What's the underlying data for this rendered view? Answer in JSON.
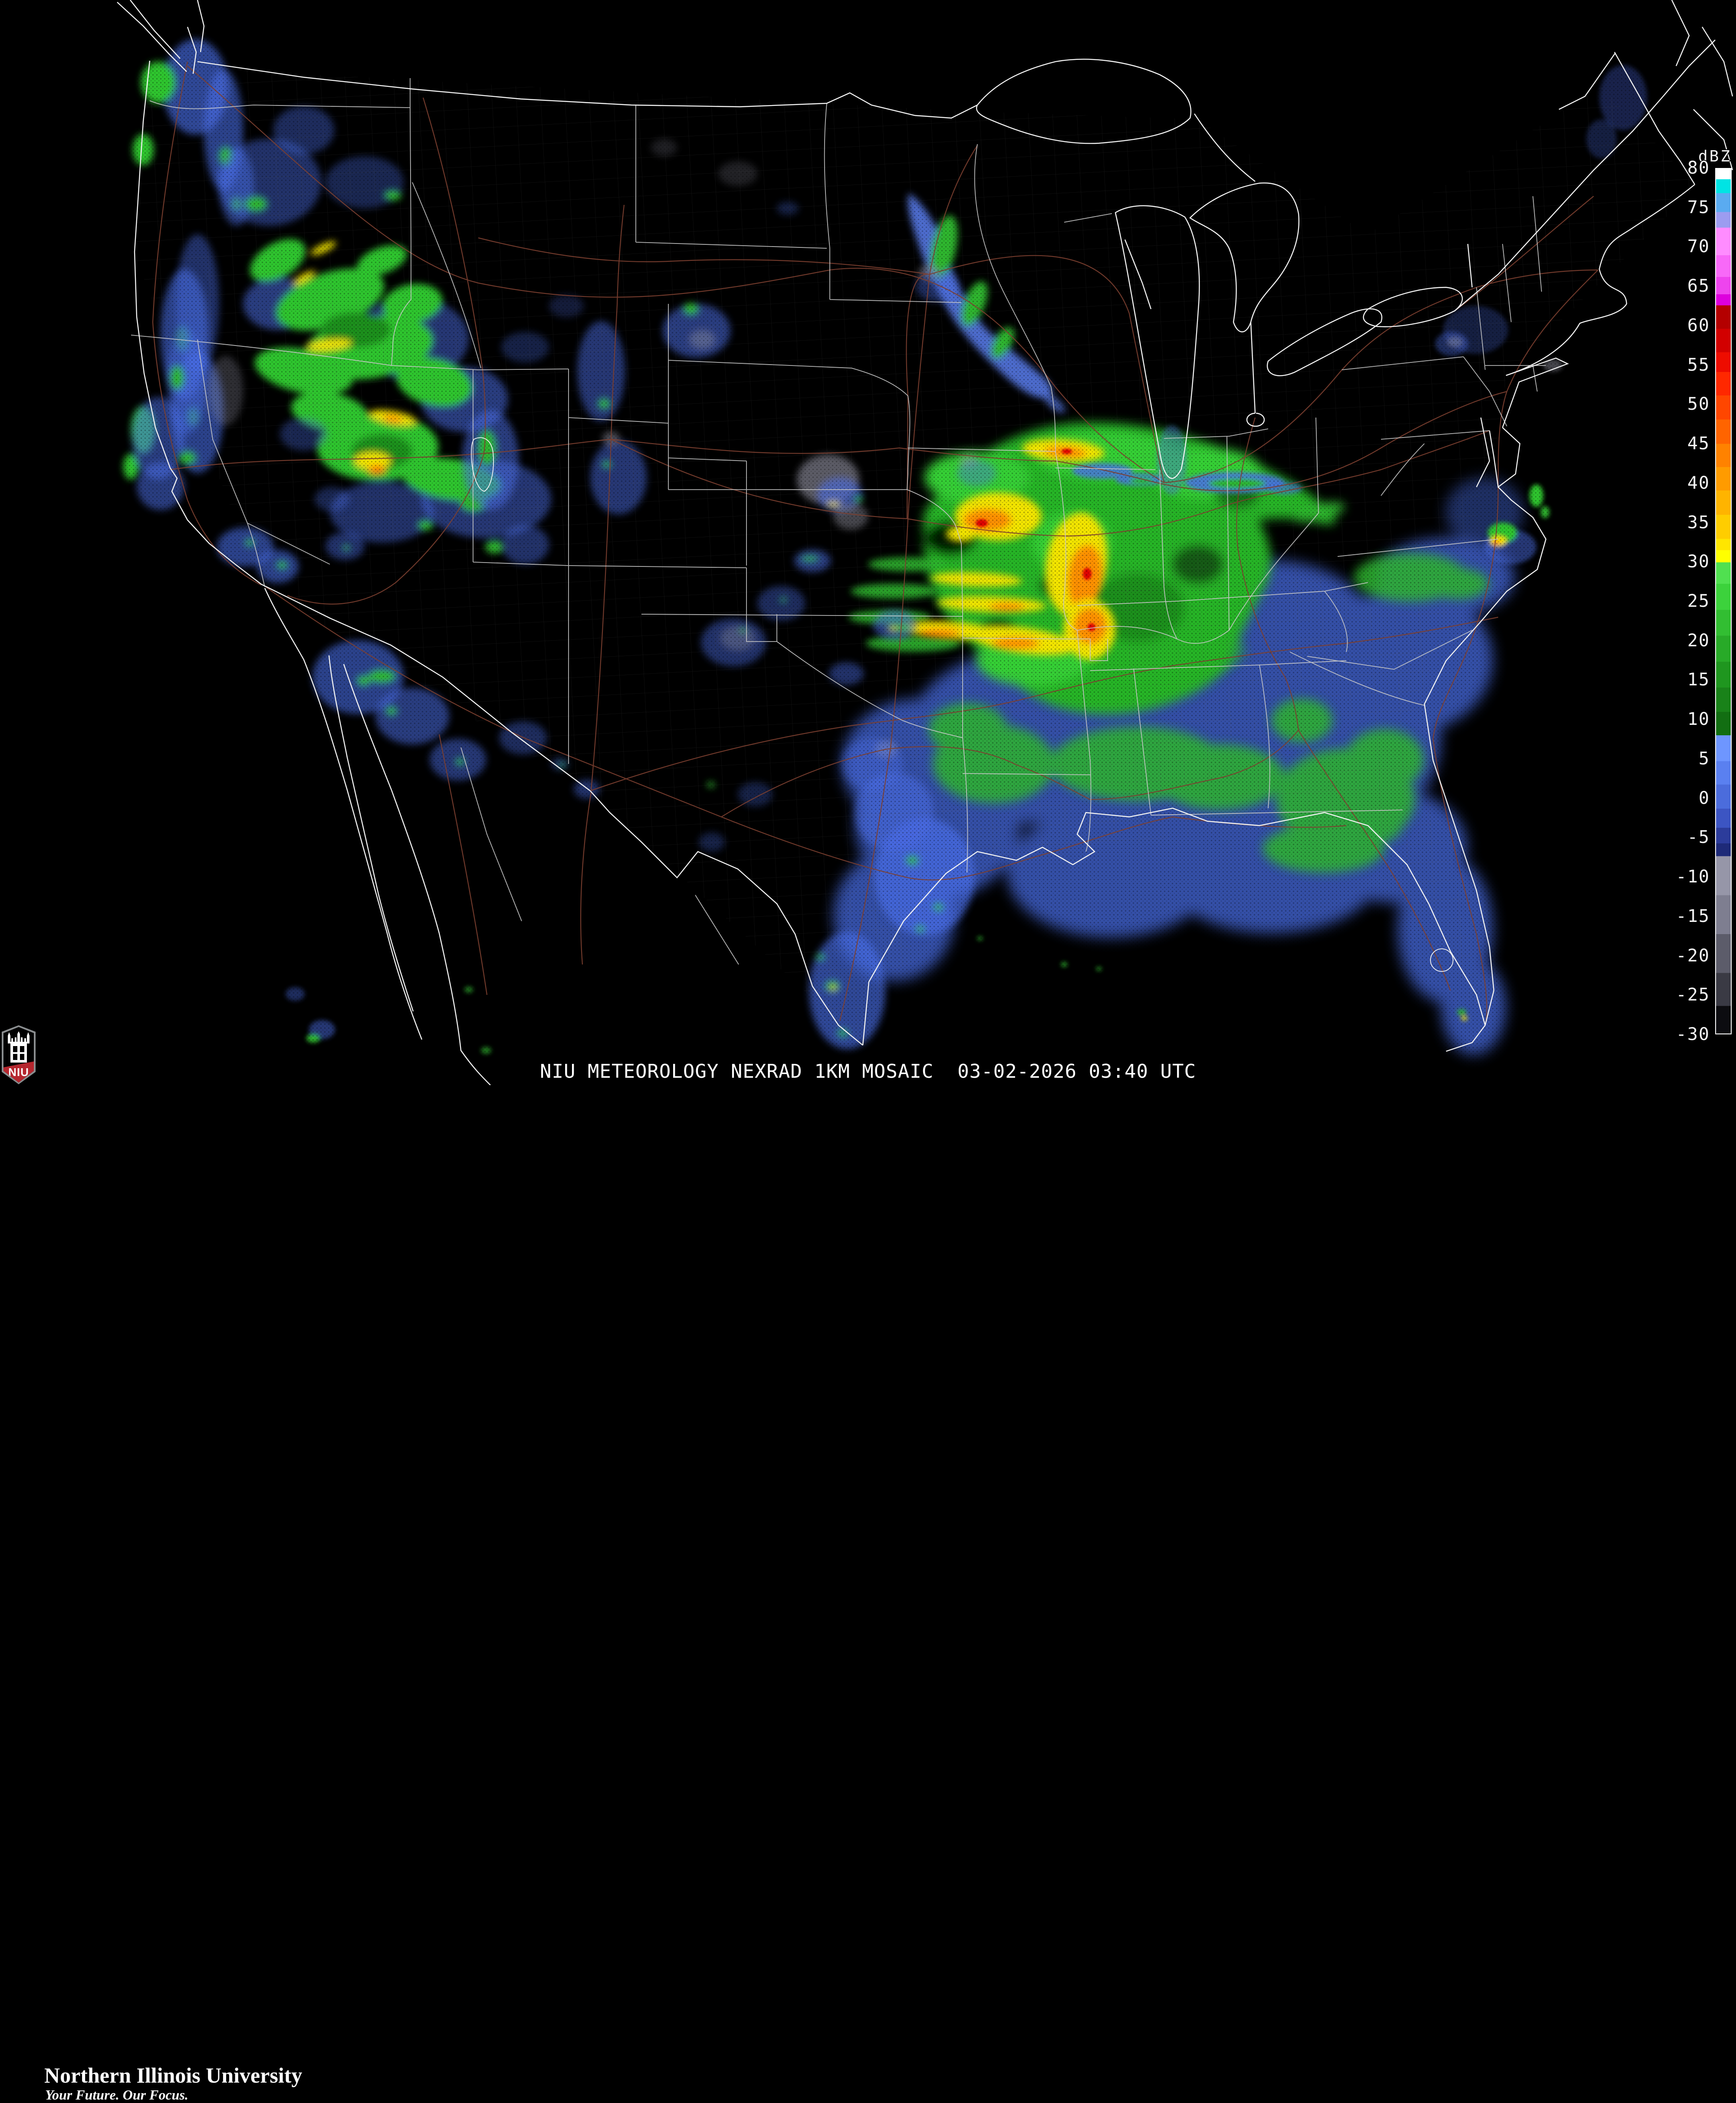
{
  "caption": {
    "text": "NIU METEOROLOGY NEXRAD 1KM MOSAIC  03-02-2026 03:40 UTC",
    "product": "NEXRAD 1KM MOSAIC",
    "source": "NIU METEOROLOGY",
    "datetime_utc": "03-02-2026 03:40 UTC"
  },
  "branding": {
    "university": "Northern Illinois University",
    "tagline": "Your Future. Our Focus.",
    "acronym": "NIU",
    "shield_red": "#b5262e",
    "shield_border": "#8a8d8f"
  },
  "colorbar": {
    "label": "dBZ",
    "max": 80,
    "min": -30,
    "tick_step": 5,
    "ticks": [
      80,
      75,
      70,
      65,
      60,
      55,
      50,
      45,
      40,
      35,
      30,
      25,
      20,
      15,
      10,
      5,
      0,
      -5,
      -10,
      -15,
      -20,
      -25,
      -30
    ],
    "gradient": [
      {
        "to": 0.012,
        "color": "#ffffff"
      },
      {
        "to": 0.028,
        "color": "#00e4e4"
      },
      {
        "to": 0.05,
        "color": "#5aabf0"
      },
      {
        "to": 0.068,
        "color": "#9c9cf0"
      },
      {
        "to": 0.1,
        "color": "#ff8cff"
      },
      {
        "to": 0.125,
        "color": "#f869f8"
      },
      {
        "to": 0.145,
        "color": "#ee44ee"
      },
      {
        "to": 0.158,
        "color": "#dd00dd"
      },
      {
        "to": 0.185,
        "color": "#b40000"
      },
      {
        "to": 0.212,
        "color": "#d20000"
      },
      {
        "to": 0.235,
        "color": "#ee0c00"
      },
      {
        "to": 0.262,
        "color": "#ff2800"
      },
      {
        "to": 0.29,
        "color": "#ff4600"
      },
      {
        "to": 0.318,
        "color": "#ff6400"
      },
      {
        "to": 0.345,
        "color": "#ff8200"
      },
      {
        "to": 0.372,
        "color": "#ff9b00"
      },
      {
        "to": 0.4,
        "color": "#ffb400"
      },
      {
        "to": 0.428,
        "color": "#ffcd00"
      },
      {
        "to": 0.441,
        "color": "#ffe600"
      },
      {
        "to": 0.455,
        "color": "#ffff00"
      },
      {
        "to": 0.48,
        "color": "#50e050"
      },
      {
        "to": 0.51,
        "color": "#3cd23c"
      },
      {
        "to": 0.54,
        "color": "#32be32"
      },
      {
        "to": 0.57,
        "color": "#28aa28"
      },
      {
        "to": 0.6,
        "color": "#1f961f"
      },
      {
        "to": 0.628,
        "color": "#198219"
      },
      {
        "to": 0.655,
        "color": "#126e12"
      },
      {
        "to": 0.685,
        "color": "#6e96ff"
      },
      {
        "to": 0.712,
        "color": "#5a80f0"
      },
      {
        "to": 0.74,
        "color": "#4b6cdc"
      },
      {
        "to": 0.762,
        "color": "#3c55c3"
      },
      {
        "to": 0.78,
        "color": "#2c3c9b"
      },
      {
        "to": 0.795,
        "color": "#1e2a78"
      },
      {
        "to": 0.84,
        "color": "#9696a8"
      },
      {
        "to": 0.885,
        "color": "#7e7e90"
      },
      {
        "to": 0.93,
        "color": "#5c5c6a"
      },
      {
        "to": 0.968,
        "color": "#3a3a44"
      },
      {
        "to": 1.0,
        "color": "#0c0c10"
      }
    ]
  },
  "map_colors": {
    "ocean": "#000000",
    "coastline": "#f2f2f2",
    "state_border": "#c9c9c9",
    "county_line": "#5a5a5a",
    "highway": "#7d4030",
    "echo_blue": "#4a6ee8",
    "echo_blue_light": "#6a8cf0",
    "echo_green": "#2fc42f",
    "echo_green_dark": "#1d8f1d",
    "echo_yellow": "#f2e400",
    "echo_orange": "#ff9000",
    "echo_red": "#e00000",
    "echo_gray": "#9898a8"
  }
}
